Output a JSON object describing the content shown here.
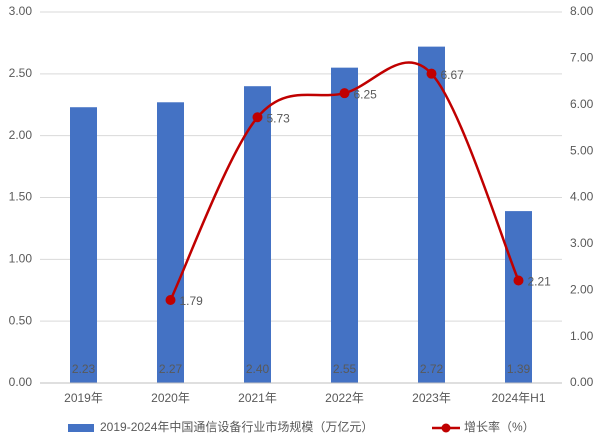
{
  "chart_data": {
    "type": "bar",
    "categories": [
      "2019年",
      "2020年",
      "2021年",
      "2022年",
      "2023年",
      "2024年H1"
    ],
    "series": [
      {
        "name": "2019-2024年中国通信设备行业市场规模（万亿元）",
        "type": "bar",
        "color": "#4472c4",
        "values": [
          2.23,
          2.27,
          2.4,
          2.55,
          2.72,
          1.39
        ],
        "value_labels": [
          "2.23",
          "2.27",
          "2.40",
          "2.55",
          "2.72",
          "1.39"
        ]
      },
      {
        "name": "增长率（%）",
        "type": "line",
        "axis": "y2",
        "color": "#c00000",
        "smooth": true,
        "values": [
          null,
          1.79,
          5.73,
          6.25,
          6.67,
          2.21
        ]
      }
    ],
    "ylim": [
      0,
      3
    ],
    "yticks": [
      {
        "value": 0,
        "label": "0.00"
      },
      {
        "value": 0.5,
        "label": "0.50"
      },
      {
        "value": 1,
        "label": "1.00"
      },
      {
        "value": 1.5,
        "label": "1.50"
      },
      {
        "value": 2,
        "label": "2.00"
      },
      {
        "value": 2.5,
        "label": "2.50"
      },
      {
        "value": 3,
        "label": "3.00"
      }
    ],
    "y2lim": [
      0,
      8
    ],
    "y2ticks": [
      {
        "value": 0,
        "label": "0.00"
      },
      {
        "value": 1,
        "label": "1.00"
      },
      {
        "value": 2,
        "label": "2.00"
      },
      {
        "value": 3,
        "label": "3.00"
      },
      {
        "value": 4,
        "label": "4.00"
      },
      {
        "value": 5,
        "label": "5.00"
      },
      {
        "value": 6,
        "label": "6.00"
      },
      {
        "value": 7,
        "label": "7.00"
      },
      {
        "value": 8,
        "label": "8.00"
      }
    ],
    "grid": true,
    "legend": "bottom"
  }
}
